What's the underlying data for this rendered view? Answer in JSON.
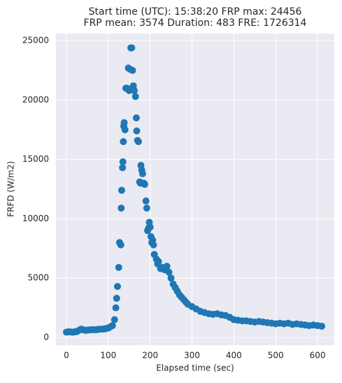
{
  "chart_data": {
    "type": "scatter",
    "title": [
      "Start time (UTC): 15:38:20 FRP max: 24456",
      "FRP mean: 3574 Duration: 483 FRE: 1726314"
    ],
    "x_label": "Elapsed time (sec)",
    "y_label": "FRFD (W/m2)",
    "color": "#1f77b4",
    "grid": true,
    "xlim": [
      -25,
      640
    ],
    "ylim": [
      -650,
      25600
    ],
    "xticks": [
      0,
      100,
      200,
      300,
      400,
      500,
      600
    ],
    "yticks": [
      0,
      5000,
      10000,
      15000,
      20000,
      25000
    ],
    "x": [
      0,
      5,
      10,
      15,
      20,
      25,
      30,
      35,
      40,
      45,
      50,
      55,
      60,
      65,
      70,
      75,
      80,
      85,
      90,
      95,
      100,
      105,
      110,
      115,
      118,
      120,
      122,
      125,
      127,
      130,
      131,
      132,
      134,
      135,
      136,
      137,
      138,
      140,
      142,
      145,
      148,
      150,
      152,
      154,
      156,
      158,
      160,
      162,
      165,
      167,
      168,
      170,
      172,
      175,
      177,
      178,
      180,
      182,
      185,
      187,
      190,
      192,
      194,
      196,
      198,
      200,
      202,
      204,
      206,
      208,
      210,
      215,
      218,
      220,
      225,
      230,
      235,
      240,
      245,
      250,
      255,
      260,
      265,
      270,
      275,
      280,
      285,
      290,
      300,
      310,
      320,
      330,
      340,
      350,
      360,
      370,
      380,
      390,
      400,
      410,
      420,
      430,
      440,
      450,
      460,
      470,
      480,
      490,
      500,
      510,
      520,
      530,
      540,
      550,
      560,
      570,
      580,
      590,
      600,
      610
    ],
    "values": [
      450,
      480,
      470,
      450,
      480,
      500,
      600,
      700,
      650,
      600,
      620,
      640,
      650,
      660,
      640,
      680,
      700,
      700,
      720,
      750,
      800,
      900,
      1000,
      1500,
      2500,
      3300,
      4300,
      5900,
      8000,
      7800,
      10900,
      12400,
      14300,
      14800,
      16500,
      17800,
      18100,
      17500,
      21000,
      21000,
      22700,
      20800,
      22600,
      24400,
      24400,
      22500,
      21200,
      20800,
      20300,
      18500,
      17400,
      16600,
      16500,
      13100,
      13000,
      14500,
      14100,
      13800,
      13000,
      12900,
      11500,
      10900,
      9000,
      9200,
      9700,
      9300,
      8500,
      8000,
      8200,
      7800,
      7000,
      6600,
      6200,
      6400,
      5800,
      5900,
      5700,
      6000,
      5500,
      5000,
      4500,
      4200,
      3900,
      3600,
      3400,
      3200,
      3000,
      2800,
      2600,
      2400,
      2200,
      2100,
      2000,
      1950,
      2000,
      1900,
      1850,
      1700,
      1500,
      1450,
      1400,
      1400,
      1350,
      1300,
      1350,
      1300,
      1250,
      1200,
      1150,
      1200,
      1150,
      1200,
      1100,
      1150,
      1100,
      1050,
      1000,
      1050,
      1000,
      950
    ]
  }
}
